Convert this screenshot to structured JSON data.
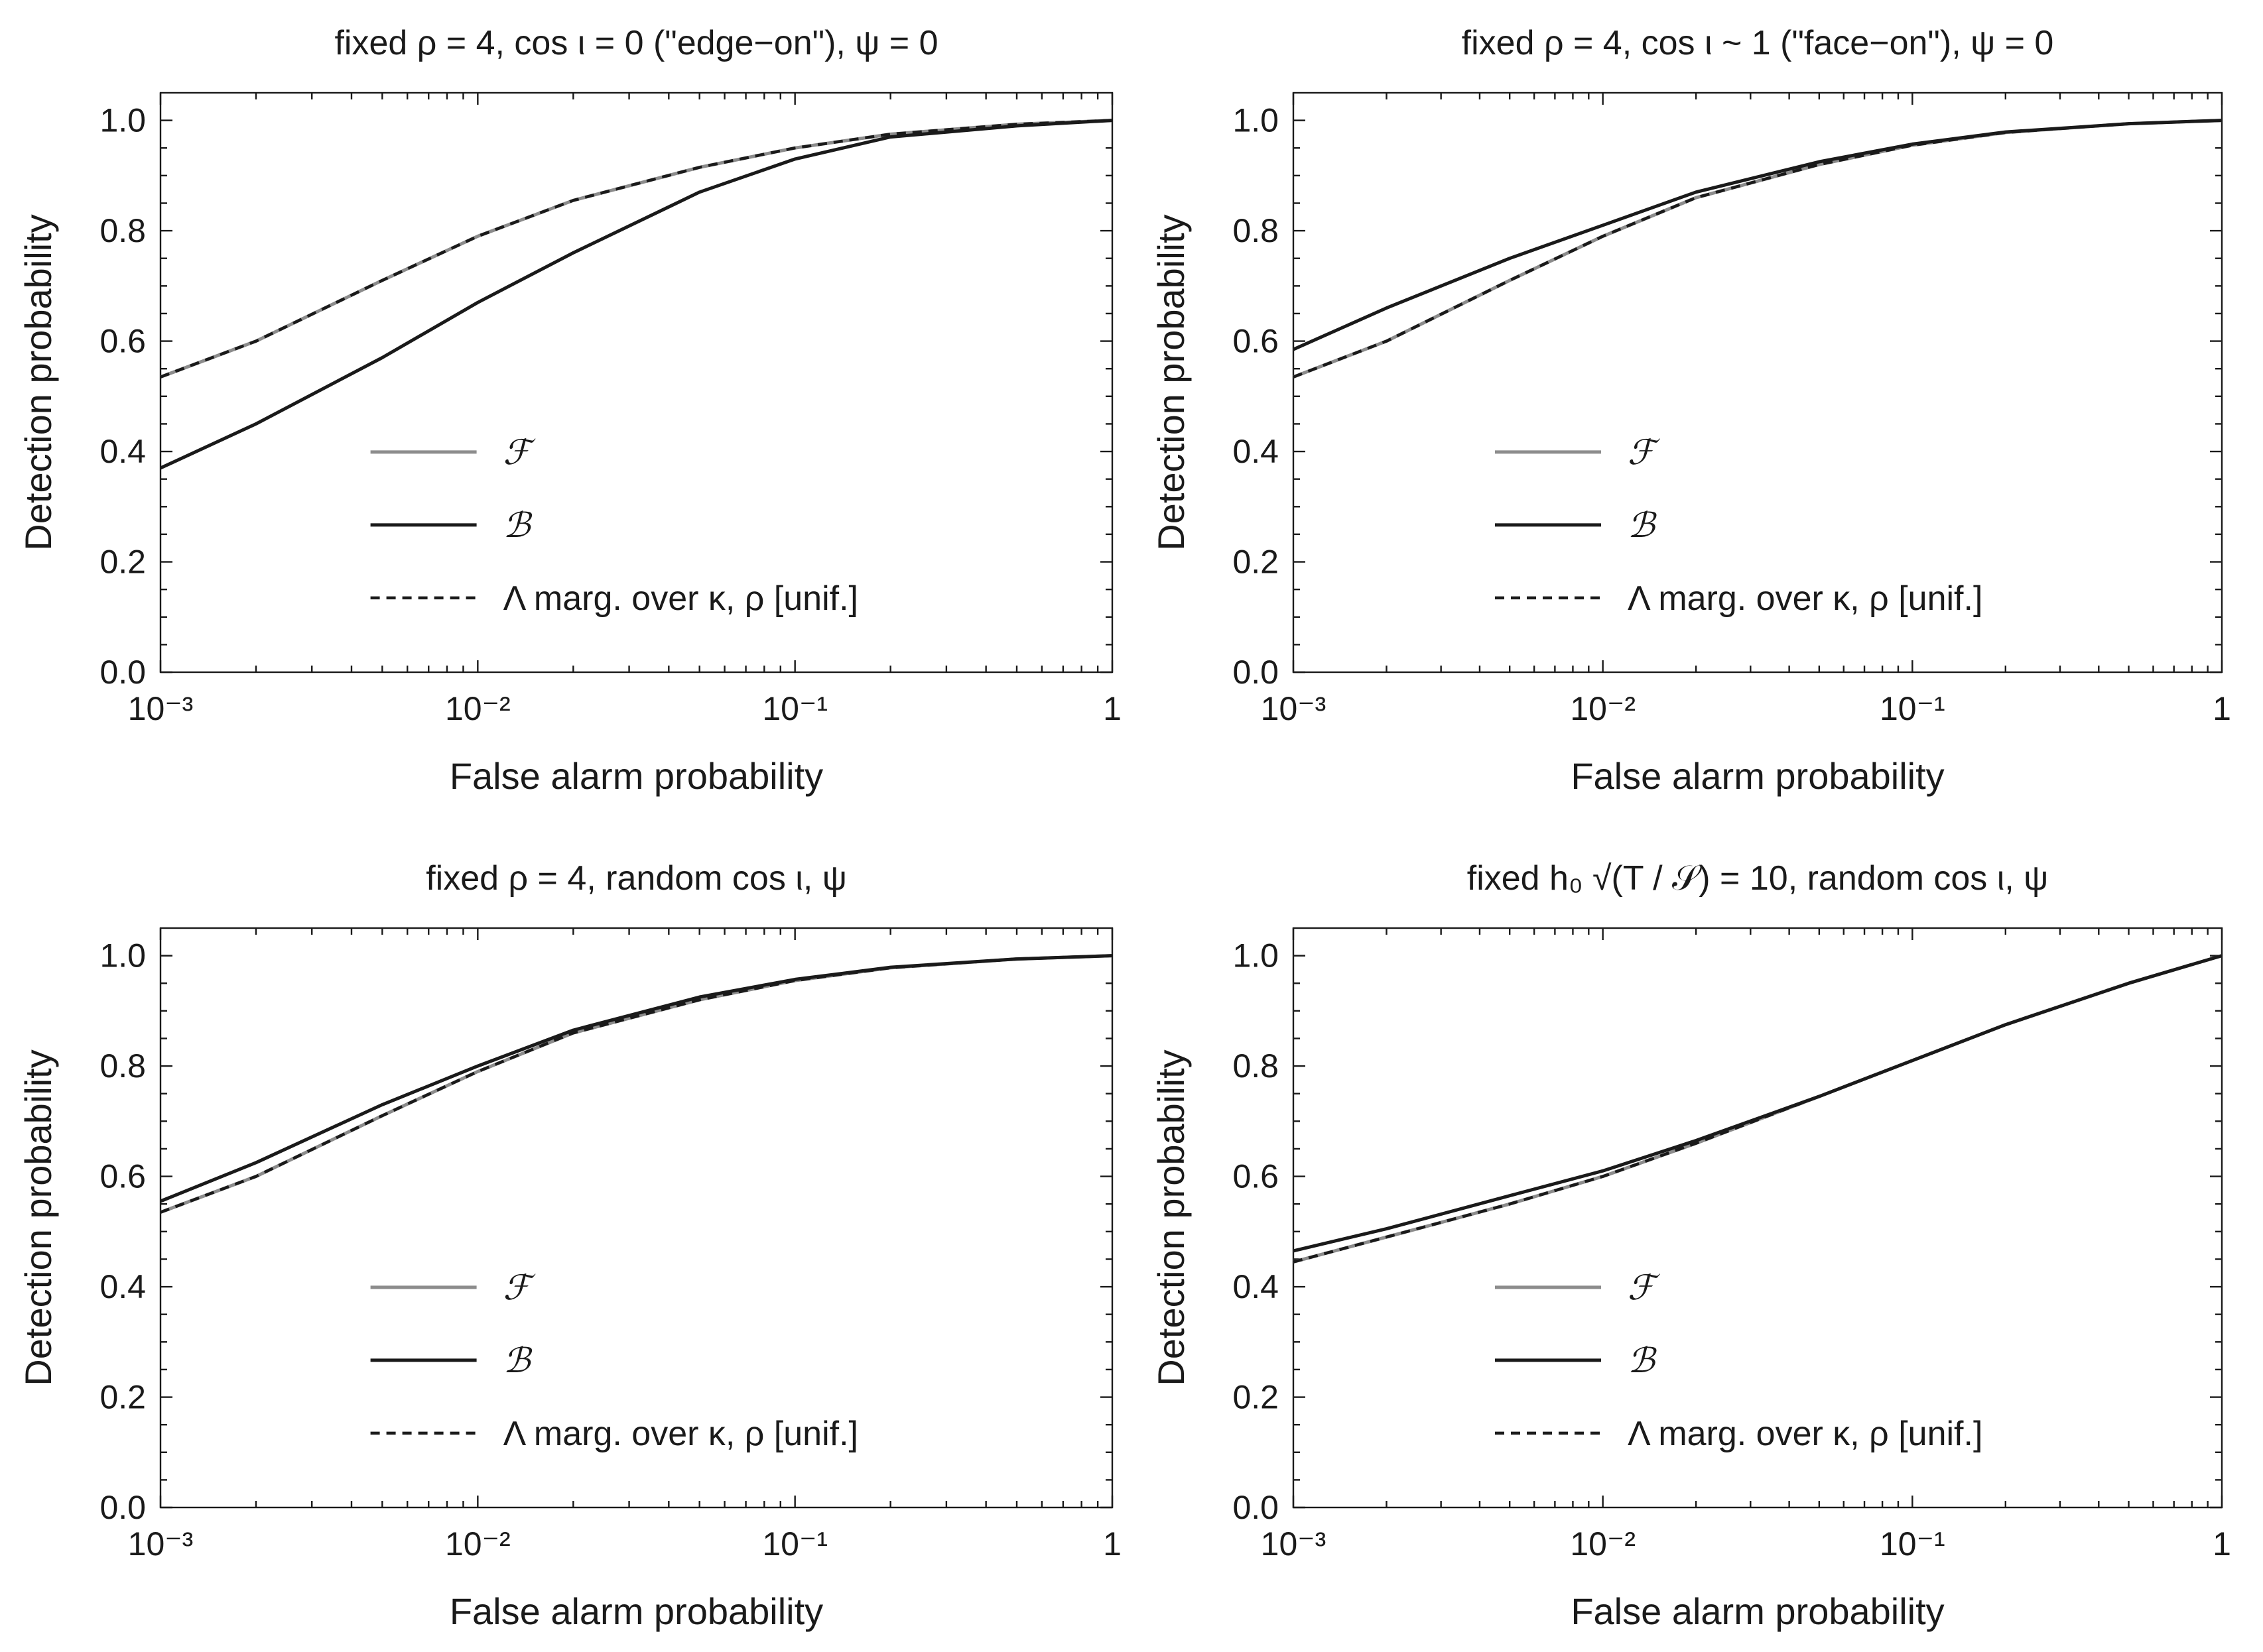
{
  "figure": {
    "colors": {
      "F": "#8c8c8c",
      "B": "#1a1a1a",
      "Lambda": "#1a1a1a"
    }
  },
  "chart_data": [
    {
      "type": "line",
      "title": "fixed ρ = 4, cos ι = 0 (\"edge−on\"), ψ = 0",
      "xlabel": "False alarm probability",
      "ylabel": "Detection probability",
      "xscale": "log",
      "xlim": [
        0.001,
        1
      ],
      "ylim": [
        0,
        1.05
      ],
      "xticks": [
        0.001,
        0.01,
        0.1,
        1
      ],
      "xtick_labels": [
        "10⁻³",
        "10⁻²",
        "10⁻¹",
        "1"
      ],
      "yticks": [
        0,
        0.2,
        0.4,
        0.6,
        0.8,
        1.0
      ],
      "ytick_labels": [
        "0.0",
        "0.2",
        "0.4",
        "0.6",
        "0.8",
        "1.0"
      ],
      "legend": [
        "ℱ",
        "ℬ",
        "Λ marg. over κ, ρ [unif.]"
      ],
      "legend_position": "lower-center",
      "x": [
        0.001,
        0.002,
        0.005,
        0.01,
        0.02,
        0.05,
        0.1,
        0.2,
        0.5,
        1
      ],
      "series": [
        {
          "name": "ℱ",
          "style": "solid-gray",
          "values": [
            0.535,
            0.6,
            0.71,
            0.79,
            0.855,
            0.915,
            0.95,
            0.975,
            0.993,
            1.0
          ]
        },
        {
          "name": "ℬ",
          "style": "solid-black",
          "values": [
            0.37,
            0.45,
            0.57,
            0.67,
            0.76,
            0.87,
            0.93,
            0.97,
            0.99,
            1.0
          ]
        },
        {
          "name": "Λ marg. over κ, ρ [unif.]",
          "style": "dashed-black",
          "values": [
            0.535,
            0.6,
            0.71,
            0.79,
            0.855,
            0.915,
            0.95,
            0.975,
            0.993,
            1.0
          ]
        }
      ]
    },
    {
      "type": "line",
      "title": "fixed ρ = 4, cos ι ~ 1 (\"face−on\"), ψ = 0",
      "xlabel": "False alarm probability",
      "ylabel": "Detection probability",
      "xscale": "log",
      "xlim": [
        0.001,
        1
      ],
      "ylim": [
        0,
        1.05
      ],
      "xticks": [
        0.001,
        0.01,
        0.1,
        1
      ],
      "xtick_labels": [
        "10⁻³",
        "10⁻²",
        "10⁻¹",
        "1"
      ],
      "yticks": [
        0,
        0.2,
        0.4,
        0.6,
        0.8,
        1.0
      ],
      "ytick_labels": [
        "0.0",
        "0.2",
        "0.4",
        "0.6",
        "0.8",
        "1.0"
      ],
      "legend": [
        "ℱ",
        "ℬ",
        "Λ marg. over κ, ρ [unif.]"
      ],
      "legend_position": "lower-center",
      "x": [
        0.001,
        0.002,
        0.005,
        0.01,
        0.02,
        0.05,
        0.1,
        0.2,
        0.5,
        1
      ],
      "series": [
        {
          "name": "ℱ",
          "style": "solid-gray",
          "values": [
            0.535,
            0.6,
            0.71,
            0.79,
            0.86,
            0.92,
            0.955,
            0.978,
            0.994,
            1.0
          ]
        },
        {
          "name": "ℬ",
          "style": "solid-black",
          "values": [
            0.585,
            0.66,
            0.75,
            0.81,
            0.87,
            0.925,
            0.957,
            0.979,
            0.994,
            1.0
          ]
        },
        {
          "name": "Λ marg. over κ, ρ [unif.]",
          "style": "dashed-black",
          "values": [
            0.535,
            0.6,
            0.71,
            0.79,
            0.86,
            0.92,
            0.955,
            0.978,
            0.994,
            1.0
          ]
        }
      ]
    },
    {
      "type": "line",
      "title": "fixed ρ = 4, random cos ι, ψ",
      "xlabel": "False alarm probability",
      "ylabel": "Detection probability",
      "xscale": "log",
      "xlim": [
        0.001,
        1
      ],
      "ylim": [
        0,
        1.05
      ],
      "xticks": [
        0.001,
        0.01,
        0.1,
        1
      ],
      "xtick_labels": [
        "10⁻³",
        "10⁻²",
        "10⁻¹",
        "1"
      ],
      "yticks": [
        0,
        0.2,
        0.4,
        0.6,
        0.8,
        1.0
      ],
      "ytick_labels": [
        "0.0",
        "0.2",
        "0.4",
        "0.6",
        "0.8",
        "1.0"
      ],
      "legend": [
        "ℱ",
        "ℬ",
        "Λ marg. over κ, ρ [unif.]"
      ],
      "legend_position": "lower-center",
      "x": [
        0.001,
        0.002,
        0.005,
        0.01,
        0.02,
        0.05,
        0.1,
        0.2,
        0.5,
        1
      ],
      "series": [
        {
          "name": "ℱ",
          "style": "solid-gray",
          "values": [
            0.535,
            0.6,
            0.71,
            0.79,
            0.86,
            0.92,
            0.955,
            0.978,
            0.994,
            1.0
          ]
        },
        {
          "name": "ℬ",
          "style": "solid-black",
          "values": [
            0.555,
            0.625,
            0.73,
            0.8,
            0.865,
            0.925,
            0.957,
            0.979,
            0.994,
            1.0
          ]
        },
        {
          "name": "Λ marg. over κ, ρ [unif.]",
          "style": "dashed-black",
          "values": [
            0.535,
            0.6,
            0.71,
            0.79,
            0.86,
            0.92,
            0.955,
            0.978,
            0.994,
            1.0
          ]
        }
      ]
    },
    {
      "type": "line",
      "title": "fixed h₀ √(T / 𝒮) = 10, random cos ι, ψ",
      "xlabel": "False alarm probability",
      "ylabel": "Detection probability",
      "xscale": "log",
      "xlim": [
        0.001,
        1
      ],
      "ylim": [
        0,
        1.05
      ],
      "xticks": [
        0.001,
        0.01,
        0.1,
        1
      ],
      "xtick_labels": [
        "10⁻³",
        "10⁻²",
        "10⁻¹",
        "1"
      ],
      "yticks": [
        0,
        0.2,
        0.4,
        0.6,
        0.8,
        1.0
      ],
      "ytick_labels": [
        "0.0",
        "0.2",
        "0.4",
        "0.6",
        "0.8",
        "1.0"
      ],
      "legend": [
        "ℱ",
        "ℬ",
        "Λ marg. over κ, ρ [unif.]"
      ],
      "legend_position": "lower-center",
      "x": [
        0.001,
        0.002,
        0.005,
        0.01,
        0.02,
        0.05,
        0.1,
        0.2,
        0.5,
        1
      ],
      "series": [
        {
          "name": "ℱ",
          "style": "solid-gray",
          "values": [
            0.445,
            0.49,
            0.55,
            0.6,
            0.66,
            0.745,
            0.81,
            0.875,
            0.95,
            1.0
          ]
        },
        {
          "name": "ℬ",
          "style": "solid-black",
          "values": [
            0.465,
            0.505,
            0.565,
            0.61,
            0.665,
            0.745,
            0.81,
            0.875,
            0.95,
            1.0
          ]
        },
        {
          "name": "Λ marg. over κ, ρ [unif.]",
          "style": "dashed-black",
          "values": [
            0.445,
            0.49,
            0.55,
            0.6,
            0.66,
            0.745,
            0.81,
            0.875,
            0.95,
            1.0
          ]
        }
      ]
    }
  ]
}
